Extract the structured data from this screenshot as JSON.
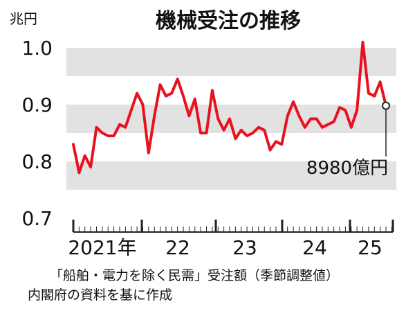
{
  "chart_data": {
    "type": "line",
    "title": "機械受注の推移",
    "ylabel": "兆円",
    "ylim": [
      0.7,
      1.0
    ],
    "yticks": [
      "1.0",
      "0.9",
      "0.8",
      "0.7"
    ],
    "ytick_values": [
      1.0,
      0.9,
      0.8,
      0.7
    ],
    "shaded_bands": [
      [
        0.95,
        1.0
      ],
      [
        0.85,
        0.9
      ],
      [
        0.75,
        0.8
      ]
    ],
    "year_labels": [
      "2021年",
      "22",
      "23",
      "24",
      "25"
    ],
    "color": "#e8111e",
    "series": [
      {
        "values": [
          0.83,
          0.78,
          0.81,
          0.79,
          0.86,
          0.85,
          0.845,
          0.845,
          0.865,
          0.86,
          0.89,
          0.92,
          0.9,
          0.815,
          0.88,
          0.935,
          0.915,
          0.92,
          0.945,
          0.915,
          0.88,
          0.91,
          0.85,
          0.85,
          0.925,
          0.875,
          0.855,
          0.875,
          0.84,
          0.855,
          0.845,
          0.85,
          0.86,
          0.855,
          0.82,
          0.835,
          0.83,
          0.88,
          0.905,
          0.88,
          0.86,
          0.875,
          0.875,
          0.86,
          0.865,
          0.87,
          0.895,
          0.89,
          0.86,
          0.89,
          1.01,
          0.92,
          0.915,
          0.94,
          0.898
        ]
      }
    ],
    "annotation": "8980億円"
  },
  "footer": {
    "line1": "「船舶・電力を除く民需」受注額（季節調整値）",
    "line2": "内閣府の資料を基に作成"
  }
}
